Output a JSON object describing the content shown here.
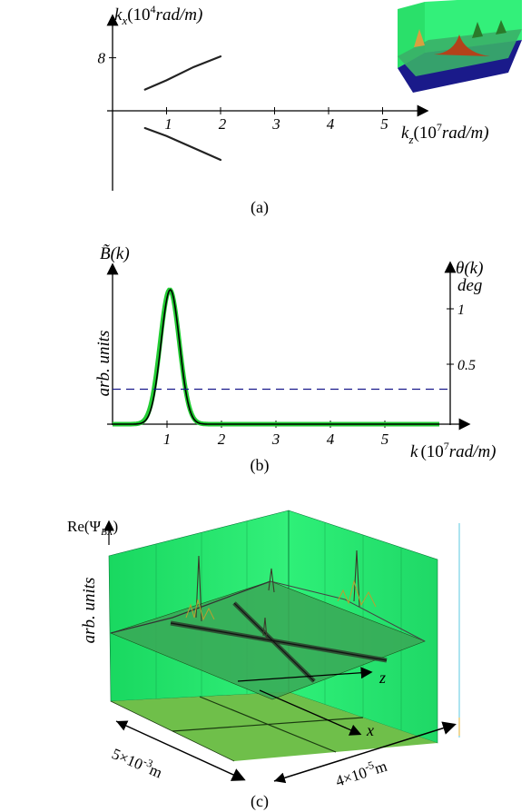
{
  "panel_a": {
    "caption": "(a)",
    "y_label": {
      "main": "k",
      "sub": "x",
      "open": "(10",
      "exp": "4",
      "unit": "rad/m)"
    },
    "x_label": {
      "main": "k",
      "sub": "z",
      "open": "(10",
      "exp": "7",
      "unit": "rad/m)"
    },
    "y_ticks": [
      "8"
    ],
    "x_ticks": [
      "1",
      "2",
      "3",
      "4",
      "5"
    ],
    "chart_data": {
      "type": "line",
      "series": [
        {
          "x": [
            0.6,
            1.0,
            1.5,
            2.0
          ],
          "y": [
            3.2,
            4.6,
            6.6,
            8.2
          ]
        },
        {
          "x": [
            0.6,
            1.0,
            1.5,
            2.0
          ],
          "y": [
            -2.6,
            -3.8,
            -5.6,
            -7.4
          ]
        }
      ],
      "xlim": [
        0,
        5.5
      ],
      "ylim": [
        -12,
        10
      ]
    }
  },
  "panel_b": {
    "caption": "(b)",
    "left_label": "B̃(k)",
    "left_axis_label": "arb. units",
    "right_label_1": "θ(k)",
    "right_label_2": "deg",
    "right_ticks": [
      "1",
      "0.5"
    ],
    "x_ticks": [
      "1",
      "2",
      "3",
      "4",
      "5"
    ],
    "x_label": {
      "main": "k",
      "open": "(10",
      "exp": "7",
      "unit": "rad/m)"
    },
    "chart_data": {
      "type": "line",
      "series": [
        {
          "kind": "gaussian",
          "peak_k": 1.05,
          "width": 0.25,
          "peak": 1.0,
          "color": "#22cc33"
        },
        {
          "kind": "gaussian",
          "peak_k": 1.06,
          "width": 0.24,
          "peak": 1.0,
          "color": "#000000"
        },
        {
          "kind": "constant",
          "y": 0.26,
          "style": "dashed",
          "color": "#1a1a8c"
        }
      ],
      "xlim": [
        0,
        6.3
      ],
      "ylim": [
        0,
        1.2
      ]
    }
  },
  "panel_c": {
    "caption": "(c)",
    "y_label": "Re(Ψ",
    "y_label_sub": "BX",
    "y_label_close": ")",
    "left_axis_label": "arb. units",
    "z_axis": "z",
    "x_axis": "x",
    "dim1": "5×10",
    "dim1_exp": "-3",
    "dim1_unit": "m",
    "dim2": "4×10",
    "dim2_exp": "-5",
    "dim2_unit": "m",
    "colors": {
      "wall": "#22ee66",
      "floor": "#6fbf4a",
      "plane": "#3aa857"
    }
  }
}
